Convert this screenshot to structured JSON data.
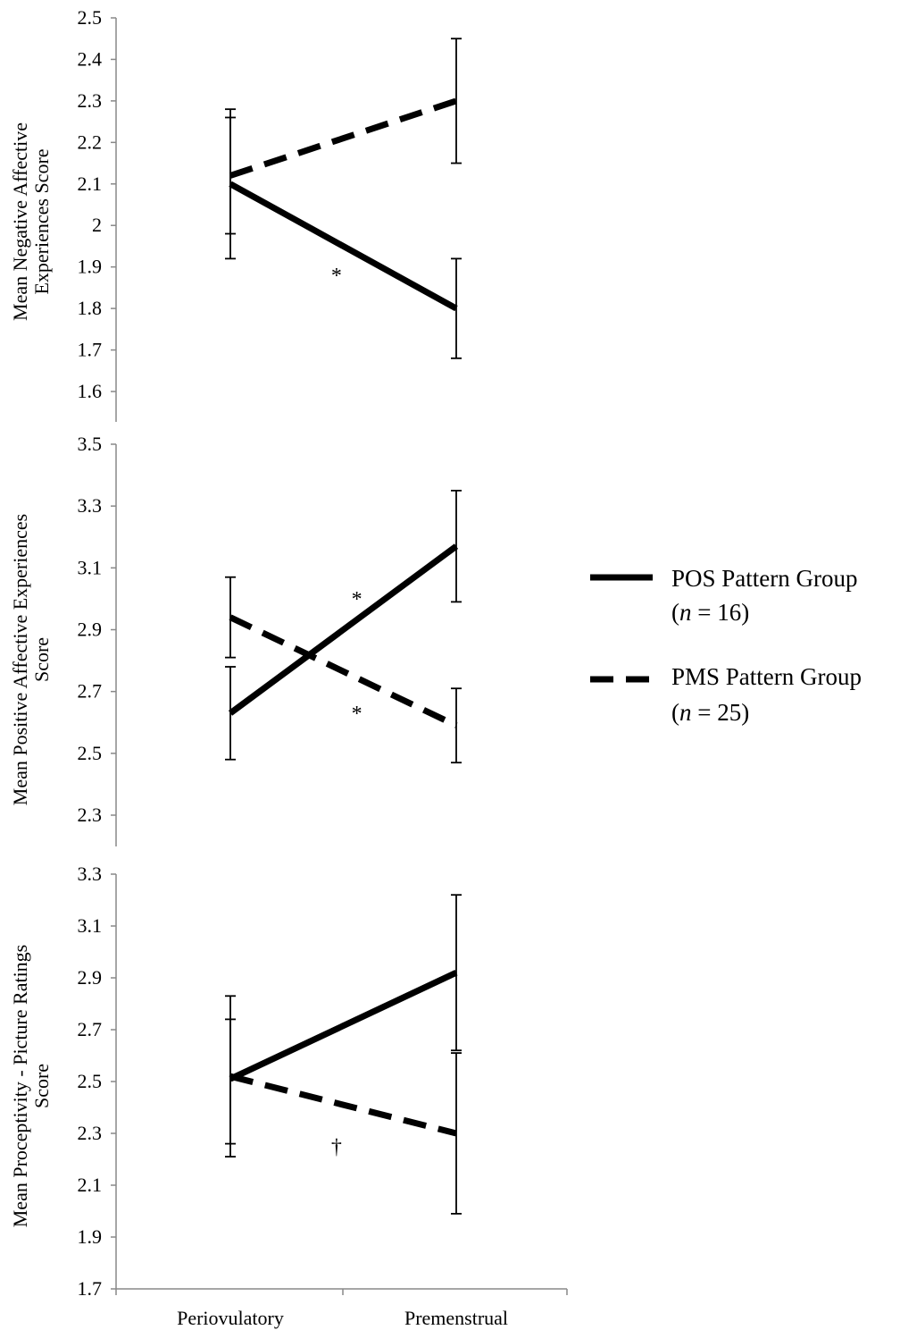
{
  "chart_data": [
    {
      "type": "line",
      "ylabel_lines": [
        "Mean Negative Affective",
        "Experiences Score"
      ],
      "ylim": [
        1.6,
        2.5
      ],
      "yticks": [
        "1.6",
        "1.7",
        "1.8",
        "1.9",
        "2",
        "2.1",
        "2.2",
        "2.3",
        "2.4",
        "2.5"
      ],
      "categories": [
        "Periovulatory",
        "Premenstrual"
      ],
      "series": [
        {
          "name": "POS Pattern Group",
          "style": "solid",
          "values": [
            2.1,
            1.8
          ],
          "err_low": [
            1.92,
            1.68
          ],
          "err_high": [
            2.28,
            1.92
          ]
        },
        {
          "name": "PMS Pattern Group",
          "style": "dashed",
          "values": [
            2.12,
            2.3
          ],
          "err_low": [
            1.98,
            2.15
          ],
          "err_high": [
            2.26,
            2.45
          ]
        }
      ],
      "annotations": [
        {
          "text": "*",
          "category_pos": 0.47,
          "y": 1.88
        }
      ]
    },
    {
      "type": "line",
      "ylabel_lines": [
        "Mean Positive Affective Experiences",
        "Score"
      ],
      "ylim": [
        2.2,
        3.5
      ],
      "yticks": [
        "2.3",
        "2.5",
        "2.7",
        "2.9",
        "3.1",
        "3.3",
        "3.5"
      ],
      "categories": [
        "Periovulatory",
        "Premenstrual"
      ],
      "series": [
        {
          "name": "POS Pattern Group",
          "style": "solid",
          "values": [
            2.63,
            3.17
          ],
          "err_low": [
            2.48,
            2.99
          ],
          "err_high": [
            2.78,
            3.35
          ]
        },
        {
          "name": "PMS Pattern Group",
          "style": "dashed",
          "values": [
            2.94,
            2.59
          ],
          "err_low": [
            2.81,
            2.47
          ],
          "err_high": [
            3.07,
            2.71
          ]
        }
      ],
      "annotations": [
        {
          "text": "*",
          "category_pos": 0.56,
          "y": 3.0
        },
        {
          "text": "*",
          "category_pos": 0.56,
          "y": 2.63
        }
      ]
    },
    {
      "type": "line",
      "ylabel_lines": [
        "Mean Proceptivity - Picture Ratings",
        "Score"
      ],
      "ylim": [
        1.7,
        3.3
      ],
      "yticks": [
        "1.7",
        "1.9",
        "2.1",
        "2.3",
        "2.5",
        "2.7",
        "2.9",
        "3.1",
        "3.3"
      ],
      "categories": [
        "Periovulatory",
        "Premenstrual"
      ],
      "series": [
        {
          "name": "POS Pattern Group",
          "style": "solid",
          "values": [
            2.51,
            2.92
          ],
          "err_low": [
            2.21,
            2.62
          ],
          "err_high": [
            2.83,
            3.22
          ]
        },
        {
          "name": "PMS Pattern Group",
          "style": "dashed",
          "values": [
            2.52,
            2.3
          ],
          "err_low": [
            2.26,
            1.99
          ],
          "err_high": [
            2.74,
            2.61
          ]
        }
      ],
      "annotations": [
        {
          "text": "†",
          "category_pos": 0.47,
          "y": 2.25
        }
      ]
    }
  ],
  "legend": {
    "placement": "right",
    "items": [
      {
        "style": "solid",
        "label_text": "POS Pattern Group",
        "n_italic": "n",
        "n_rest": " = 16)"
      },
      {
        "style": "dashed",
        "label_text": "PMS Pattern Group",
        "n_italic": "n",
        "n_rest": " = 25)"
      }
    ]
  }
}
